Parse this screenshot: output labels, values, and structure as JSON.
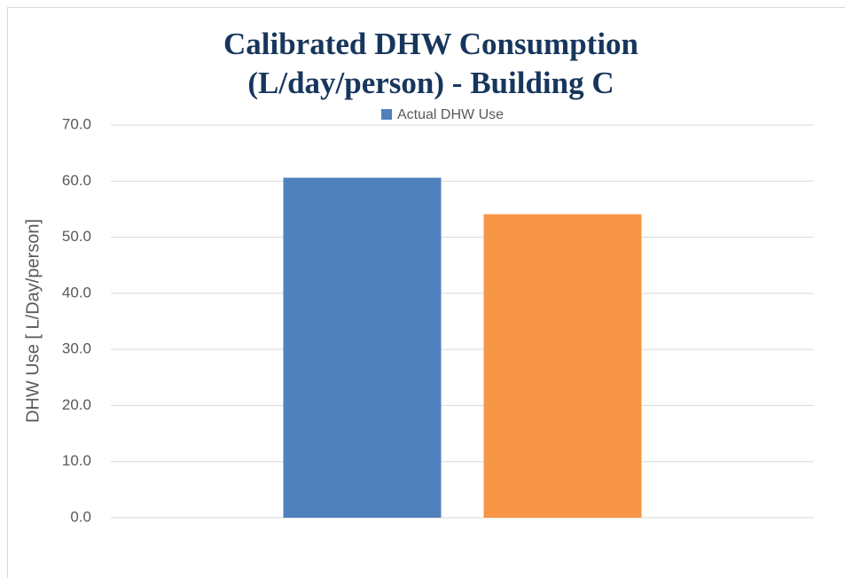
{
  "chart_data": {
    "type": "bar",
    "title": [
      "Calibrated DHW Consumption",
      "(L/day/person) - Building C"
    ],
    "y_label": "DHW Use [ L/Day/person]",
    "categories": [
      null,
      null
    ],
    "series": [
      {
        "name": "Actual DHW Use",
        "color": "#4f81bd",
        "values": [
          60.6,
          54.1
        ],
        "colors": [
          "#4f81bd",
          "#f79646"
        ]
      }
    ],
    "ylim": [
      0,
      70
    ],
    "yticks": [
      {
        "value": 0,
        "label": "0.0"
      },
      {
        "value": 10,
        "label": "10.0"
      },
      {
        "value": 20,
        "label": "20.0"
      },
      {
        "value": 30,
        "label": "30.0"
      },
      {
        "value": 40,
        "label": "40.0"
      },
      {
        "value": 50,
        "label": "50.0"
      },
      {
        "value": 60,
        "label": "60.0"
      },
      {
        "value": 70,
        "label": "70.0"
      }
    ],
    "grid": true,
    "legend": "top"
  }
}
